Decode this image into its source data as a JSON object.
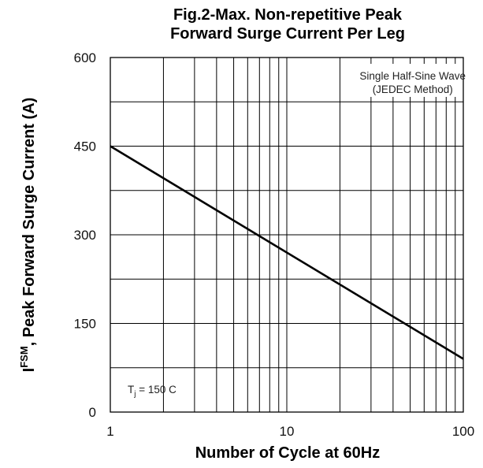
{
  "chart_data": {
    "type": "line",
    "title_line1": "Fig.2-Max. Non-repetitive Peak",
    "title_line2": "Forward Surge Current Per Leg",
    "xlabel": "Number of Cycle at 60Hz",
    "ylabel_main": "I",
    "ylabel_sup": "FSM",
    "ylabel_rest": ", Peak Forward Surge Current (A)",
    "x_scale": "log",
    "xlim": [
      1,
      100
    ],
    "ylim": [
      0,
      600
    ],
    "x_ticks": [
      1,
      10,
      100
    ],
    "x_tick_labels": [
      "1",
      "10",
      "100"
    ],
    "y_ticks": [
      0,
      150,
      300,
      450,
      600
    ],
    "y_tick_labels": [
      "0",
      "150",
      "300",
      "450",
      "600"
    ],
    "grid": true,
    "series": [
      {
        "x": [
          1,
          100
        ],
        "y": [
          450,
          90
        ],
        "color": "#000000"
      }
    ],
    "annotations": {
      "top_right_line1": "Single Half-Sine Wave",
      "top_right_line2": "(JEDEC Method)",
      "bottom_left_main": "T",
      "bottom_left_sub": "j",
      "bottom_left_rest": " = 150 C"
    }
  }
}
